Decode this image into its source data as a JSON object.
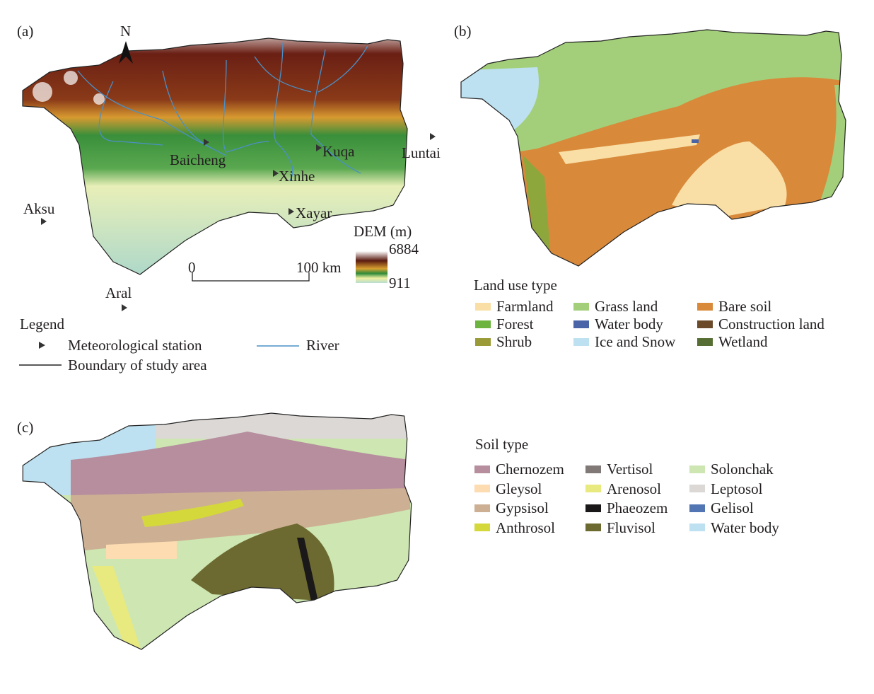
{
  "panels": {
    "a": "(a)",
    "b": "(b)",
    "c": "(c)"
  },
  "panel_a": {
    "north": "N",
    "stations": [
      "Baicheng",
      "Kuqa",
      "Luntai",
      "Xinhe",
      "Aksu",
      "Xayar",
      "Aral"
    ],
    "dem_title": "DEM (m)",
    "dem_max": "6884",
    "dem_min": "911",
    "scale_start": "0",
    "scale_end": "100 km",
    "legend_title": "Legend",
    "legend_station": "Meteorological station",
    "legend_river": "River",
    "legend_boundary": "Boundary of study area",
    "colors": {
      "river": "#4a90c8",
      "dem_high": "#5a1a10",
      "dem_mid": "#2e8b3a",
      "dem_low": "#b8dcd0"
    }
  },
  "panel_b": {
    "legend_title": "Land use type",
    "items": [
      {
        "label": "Farmland",
        "color": "#f9dfa5"
      },
      {
        "label": "Grass land",
        "color": "#a3cf7a"
      },
      {
        "label": "Bare soil",
        "color": "#d9893a"
      },
      {
        "label": "Forest",
        "color": "#6db33f"
      },
      {
        "label": "Water body",
        "color": "#4a64a8"
      },
      {
        "label": "Construction land",
        "color": "#6b4a2a"
      },
      {
        "label": "Shrub",
        "color": "#9a9a38"
      },
      {
        "label": "Ice and Snow",
        "color": "#bde1f0"
      },
      {
        "label": "Wetland",
        "color": "#566e34"
      }
    ]
  },
  "panel_c": {
    "legend_title": "Soil type",
    "items": [
      {
        "label": "Chernozem",
        "color": "#b68e9e"
      },
      {
        "label": "Vertisol",
        "color": "#817878"
      },
      {
        "label": "Solonchak",
        "color": "#cde6b2"
      },
      {
        "label": "Gleysol",
        "color": "#fcdcb0"
      },
      {
        "label": "Arenosol",
        "color": "#e8ea80"
      },
      {
        "label": "Leptosol",
        "color": "#dcd8d6"
      },
      {
        "label": "Gypsisol",
        "color": "#cdb093"
      },
      {
        "label": "Phaeozem",
        "color": "#1a1818"
      },
      {
        "label": "Gelisol",
        "color": "#5276b4"
      },
      {
        "label": "Anthrosol",
        "color": "#d4d83a"
      },
      {
        "label": "Fluvisol",
        "color": "#6c6a30"
      },
      {
        "label": "Water body",
        "color": "#bde1f0"
      }
    ]
  }
}
